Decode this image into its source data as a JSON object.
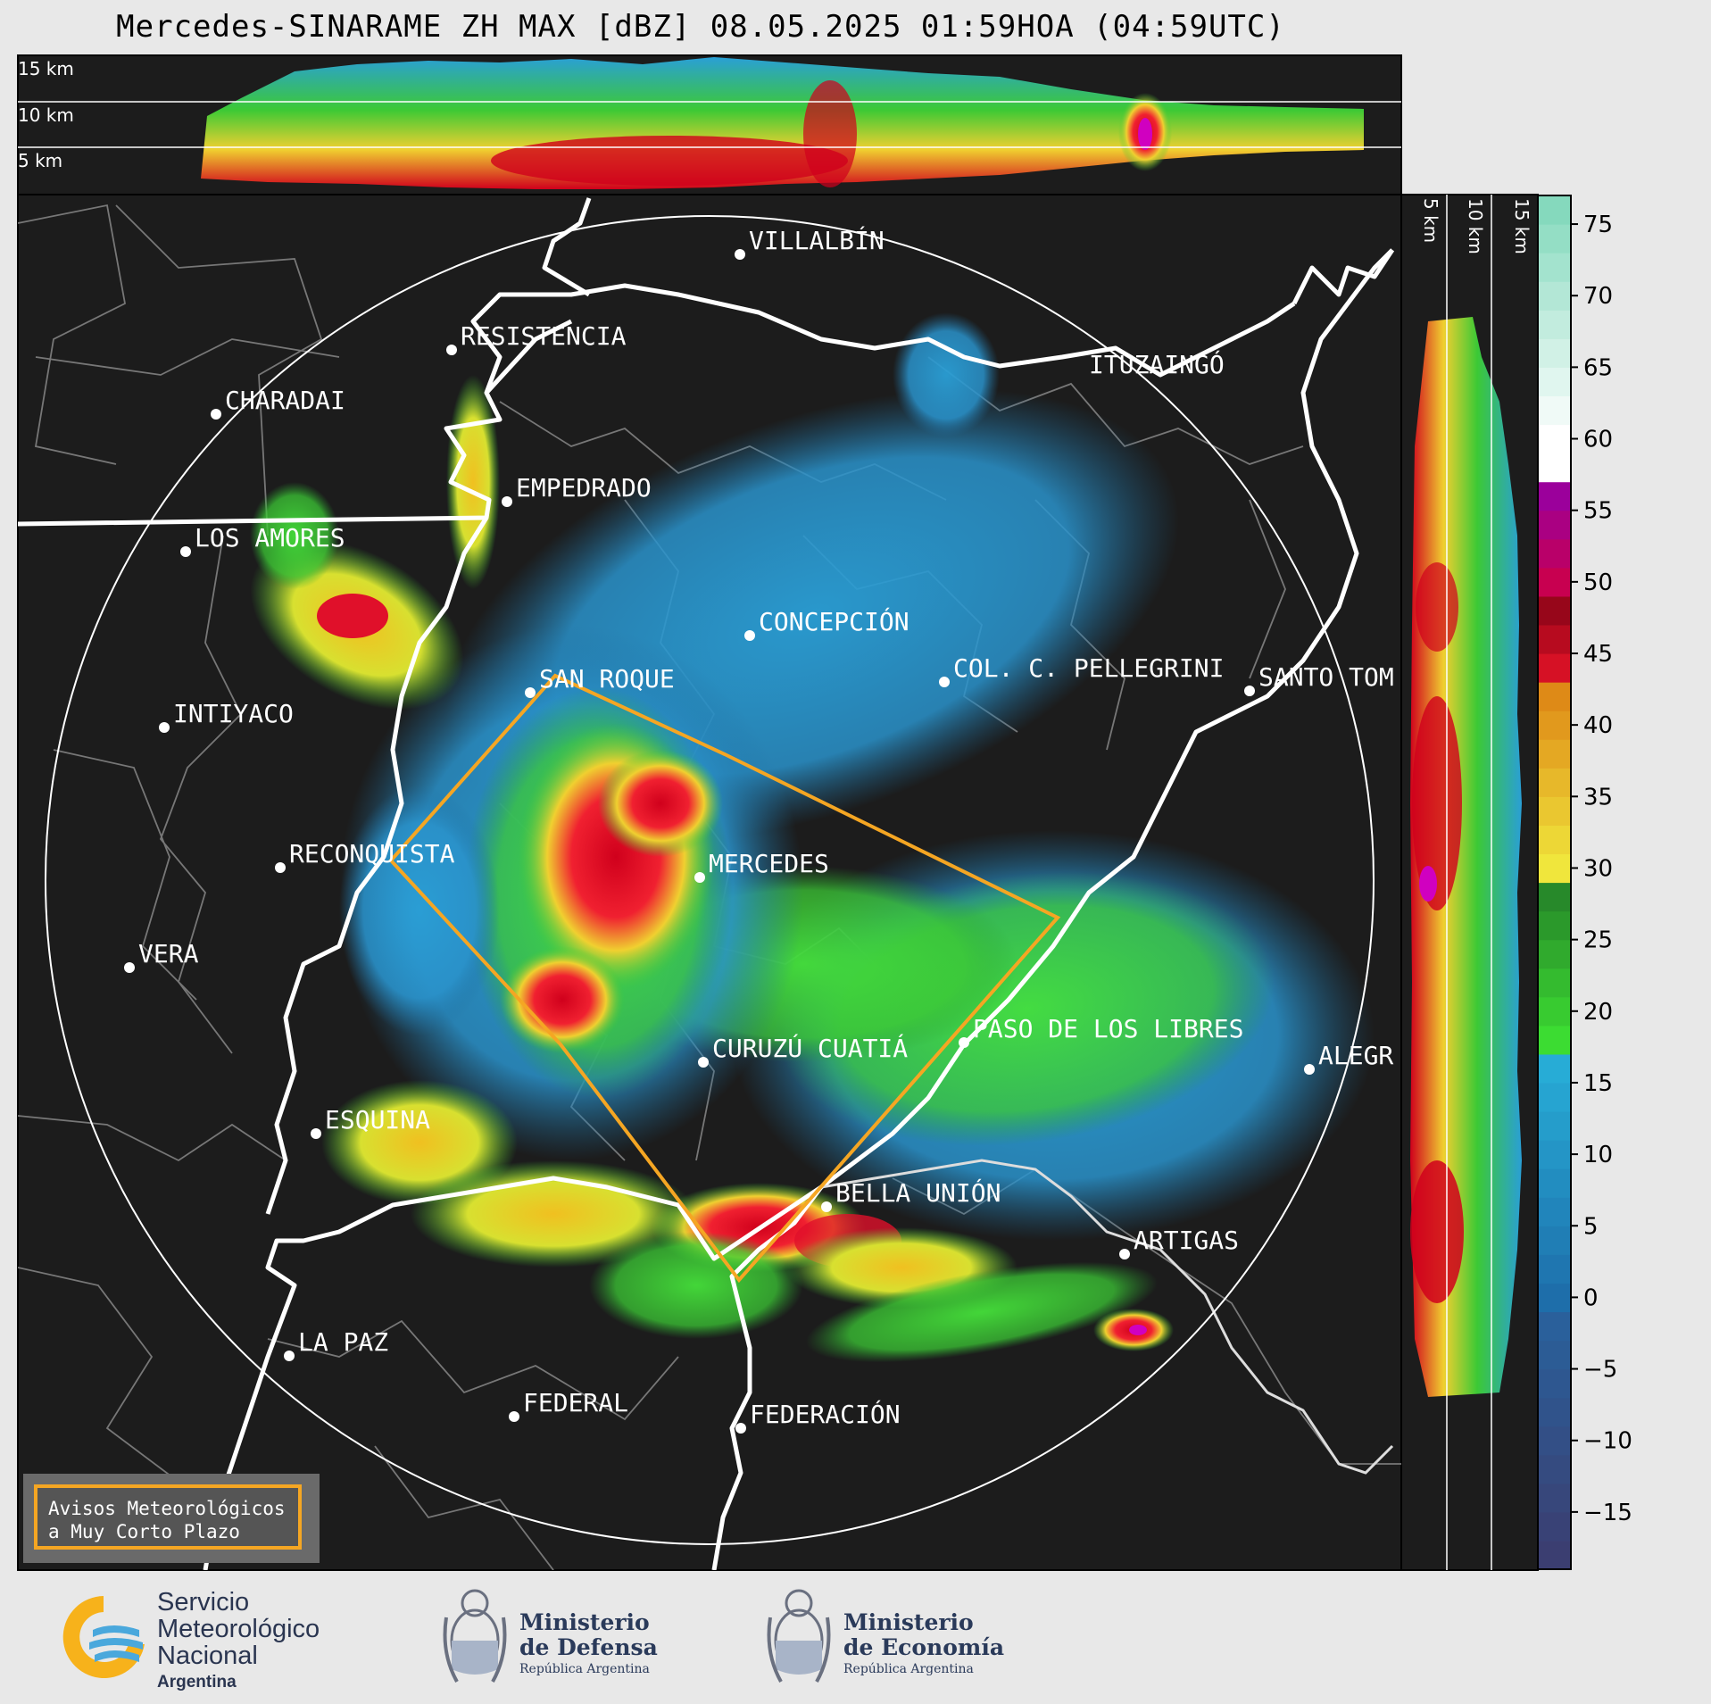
{
  "title": "Mercedes-SINARAME ZH MAX [dBZ] 08.05.2025 01:59HOA (04:59UTC)",
  "colors": {
    "background": "#e8e8e8",
    "panel": "#1c1c1c",
    "warning_box": "#f5a623"
  },
  "top_section_km_labels": [
    "15 km",
    "10 km",
    "5 km"
  ],
  "side_section_km_labels": [
    "5 km",
    "10 km",
    "15 km"
  ],
  "colorbar": {
    "unit": "dBZ",
    "tick_labels": [
      "75",
      "70",
      "65",
      "60",
      "55",
      "50",
      "45",
      "40",
      "35",
      "30",
      "25",
      "20",
      "15",
      "10",
      "5",
      "0",
      "−5",
      "−10",
      "−15"
    ],
    "tick_values": [
      75,
      70,
      65,
      60,
      55,
      50,
      45,
      40,
      35,
      30,
      25,
      20,
      15,
      10,
      5,
      0,
      -5,
      -10,
      -15
    ],
    "range": [
      -19,
      77
    ]
  },
  "cities": [
    {
      "name": "VILLALBÍN"
    },
    {
      "name": "RESISTENCIA"
    },
    {
      "name": "ITUZAINGÓ"
    },
    {
      "name": "CHARADAI"
    },
    {
      "name": "EMPEDRADO"
    },
    {
      "name": "LOS AMORES"
    },
    {
      "name": "CONCEPCIÓN"
    },
    {
      "name": "SAN ROQUE"
    },
    {
      "name": "COL. C. PELLEGRINI"
    },
    {
      "name": "SANTO TOM"
    },
    {
      "name": "INTIYACO"
    },
    {
      "name": "RECONQUISTA"
    },
    {
      "name": "MERCEDES"
    },
    {
      "name": "VERA"
    },
    {
      "name": "PASO DE LOS LIBRES"
    },
    {
      "name": "CURUZÚ CUATIÁ"
    },
    {
      "name": "ALEGR"
    },
    {
      "name": "ESQUINA"
    },
    {
      "name": "BELLA UNIÓN"
    },
    {
      "name": "ARTIGAS"
    },
    {
      "name": "LA PAZ"
    },
    {
      "name": "FEDERAL"
    },
    {
      "name": "FEDERACIÓN"
    }
  ],
  "warning_box": {
    "line1": "Avisos Meteorológicos",
    "line2": "a Muy Corto Plazo"
  },
  "logos": {
    "smn": {
      "line1": "Servicio",
      "line2": "Meteorológico",
      "line3": "Nacional",
      "line4": "Argentina"
    },
    "defensa": {
      "line1": "Ministerio",
      "line2": "de Defensa",
      "line3": "República Argentina"
    },
    "economia": {
      "line1": "Ministerio",
      "line2": "de Economía",
      "line3": "República Argentina"
    }
  }
}
